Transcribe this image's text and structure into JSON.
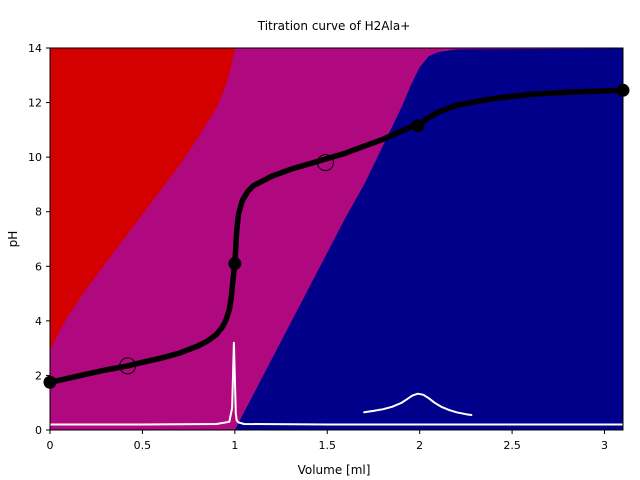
{
  "chart_data": {
    "type": "line",
    "title": "Titration curve of H2Ala+",
    "xlabel": "Volume [ml]",
    "ylabel": "pH",
    "xlim": [
      0,
      3.1
    ],
    "ylim": [
      0,
      14
    ],
    "x_ticks": [
      "0",
      "0.5",
      "1",
      "1.5",
      "2",
      "2.5",
      "3"
    ],
    "y_ticks": [
      "0",
      "2",
      "4",
      "6",
      "8",
      "10",
      "12",
      "14"
    ],
    "grid": false,
    "legend": "none",
    "species_regions": [
      {
        "color": "#d40000",
        "boundary_x": [
          0,
          0.05,
          0.1,
          0.2,
          0.3,
          0.4,
          0.5,
          0.6,
          0.7,
          0.8,
          0.9,
          0.95,
          0.98,
          1.0
        ],
        "boundary_y": [
          2.9,
          3.6,
          4.2,
          5.2,
          6.1,
          7.0,
          7.9,
          8.8,
          9.7,
          10.7,
          11.8,
          12.6,
          13.3,
          14
        ]
      },
      {
        "color": "#b0087f",
        "boundary_x": [
          0,
          0.1,
          0.2,
          0.3,
          0.5,
          1.0,
          1.1,
          1.2,
          1.3,
          1.4,
          1.5,
          1.6,
          1.7,
          1.8,
          1.9,
          1.95,
          2.0,
          2.05,
          2.1,
          2.2,
          3.1
        ],
        "boundary_y": [
          0,
          0,
          0,
          0,
          0,
          0,
          1.3,
          2.6,
          3.9,
          5.2,
          6.5,
          7.8,
          9.0,
          10.4,
          11.8,
          12.6,
          13.3,
          13.7,
          13.85,
          13.95,
          13.98
        ]
      },
      {
        "color": "#00008b",
        "boundary_x": [],
        "boundary_y": []
      }
    ],
    "series": [
      {
        "x": [
          0,
          0.05,
          0.1,
          0.2,
          0.3,
          0.42,
          0.5,
          0.6,
          0.7,
          0.8,
          0.85,
          0.9,
          0.93,
          0.95,
          0.97,
          0.98,
          0.99,
          0.995,
          1.0,
          1.005,
          1.01,
          1.02,
          1.04,
          1.07,
          1.1,
          1.2,
          1.3,
          1.4,
          1.5,
          1.6,
          1.7,
          1.8,
          1.9,
          1.95,
          1.99,
          2.05,
          2.1,
          2.2,
          2.4,
          2.6,
          2.8,
          3.1
        ],
        "y": [
          1.75,
          1.82,
          1.9,
          2.05,
          2.2,
          2.35,
          2.48,
          2.63,
          2.82,
          3.08,
          3.25,
          3.5,
          3.75,
          4.0,
          4.4,
          4.8,
          5.5,
          5.8,
          6.1,
          6.7,
          7.3,
          7.9,
          8.4,
          8.75,
          8.95,
          9.3,
          9.55,
          9.75,
          9.95,
          10.15,
          10.4,
          10.65,
          10.95,
          11.1,
          11.2,
          11.45,
          11.65,
          11.9,
          12.15,
          12.3,
          12.38,
          12.45
        ]
      },
      {
        "x": [
          0,
          0.5,
          0.9,
          0.97,
          0.985,
          0.99,
          0.995,
          1.0,
          1.005,
          1.01,
          1.02,
          1.05,
          1.5,
          2.0,
          2.5,
          3.1
        ],
        "y": [
          0.2,
          0.2,
          0.22,
          0.3,
          0.8,
          2.0,
          3.2,
          2.0,
          0.6,
          0.35,
          0.28,
          0.22,
          0.2,
          0.2,
          0.2,
          0.2
        ]
      },
      {
        "x": [
          1.7,
          1.75,
          1.8,
          1.85,
          1.9,
          1.93,
          1.96,
          1.99,
          2.02,
          2.05,
          2.08,
          2.12,
          2.16,
          2.2,
          2.25,
          2.28
        ],
        "y": [
          0.65,
          0.7,
          0.76,
          0.85,
          0.99,
          1.12,
          1.26,
          1.33,
          1.29,
          1.16,
          1.0,
          0.84,
          0.73,
          0.65,
          0.58,
          0.55
        ]
      }
    ],
    "points": [
      {
        "x": 0.0,
        "y": 1.75,
        "style": "filled"
      },
      {
        "x": 0.42,
        "y": 2.35,
        "style": "open"
      },
      {
        "x": 1.0,
        "y": 6.1,
        "style": "filled"
      },
      {
        "x": 1.49,
        "y": 9.8,
        "style": "open"
      },
      {
        "x": 1.99,
        "y": 11.15,
        "style": "filled"
      },
      {
        "x": 3.1,
        "y": 12.45,
        "style": "filled"
      }
    ],
    "colors": {
      "region1": "#d40000",
      "region2": "#b0087f",
      "region3": "#00008b",
      "titration_line": "#000000",
      "derivative_line": "#ffffff"
    }
  }
}
